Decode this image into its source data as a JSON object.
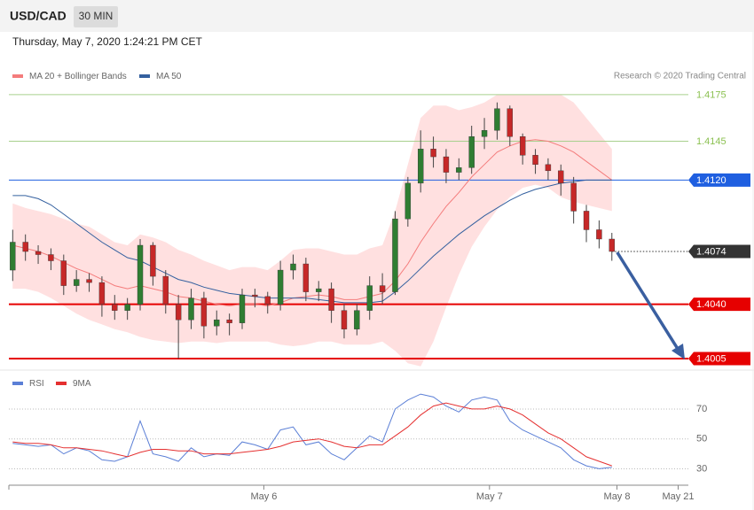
{
  "chart_data": [
    {
      "type": "candlestick",
      "title": "USD/CAD",
      "timeframe": "30 MIN",
      "subtitle": "Thursday, May 7, 2020 1:24:21 PM CET",
      "source": "Research © 2020 Trading Central",
      "xlim": [
        -0.3,
        53
      ],
      "ylim": [
        1.39993,
        1.41818
      ],
      "candles": {
        "up_color": "#2f7d32",
        "down_color": "#c62828",
        "open": [
          1.4062,
          1.408,
          1.4074,
          1.4072,
          1.4068,
          1.4052,
          1.4056,
          1.4054,
          1.404,
          1.4036,
          1.404,
          1.4078,
          1.4058,
          1.404,
          1.403,
          1.4044,
          1.4026,
          1.403,
          1.4028,
          1.4046,
          1.4045,
          1.404,
          1.4062,
          1.4066,
          1.4048,
          1.405,
          1.4036,
          1.4024,
          1.4036,
          1.4052,
          1.4048,
          1.4095,
          1.4118,
          1.414,
          1.4135,
          1.4125,
          1.4128,
          1.4148,
          1.4152,
          1.4166,
          1.4148,
          1.4136,
          1.413,
          1.4126,
          1.4118,
          1.41,
          1.4088,
          1.4082
        ],
        "high": [
          1.4088,
          1.4085,
          1.4078,
          1.4076,
          1.4072,
          1.4062,
          1.406,
          1.4058,
          1.4046,
          1.4044,
          1.4082,
          1.408,
          1.4062,
          1.4046,
          1.405,
          1.4048,
          1.4036,
          1.4034,
          1.405,
          1.405,
          1.4048,
          1.4068,
          1.4072,
          1.407,
          1.4055,
          1.4054,
          1.404,
          1.404,
          1.4058,
          1.406,
          1.41,
          1.4122,
          1.4152,
          1.4148,
          1.414,
          1.4134,
          1.4155,
          1.416,
          1.417,
          1.4168,
          1.415,
          1.414,
          1.4134,
          1.413,
          1.4122,
          1.4104,
          1.4094,
          1.4086
        ],
        "low": [
          1.4055,
          1.4068,
          1.4066,
          1.4062,
          1.4046,
          1.4048,
          1.4048,
          1.4032,
          1.403,
          1.403,
          1.4036,
          1.4052,
          1.4034,
          1.4005,
          1.4024,
          1.4018,
          1.402,
          1.402,
          1.4024,
          1.4038,
          1.4034,
          1.4036,
          1.4056,
          1.4042,
          1.4042,
          1.4028,
          1.4018,
          1.402,
          1.403,
          1.404,
          1.4046,
          1.409,
          1.4112,
          1.4128,
          1.4118,
          1.412,
          1.4124,
          1.414,
          1.4146,
          1.4142,
          1.413,
          1.4124,
          1.412,
          1.411,
          1.4092,
          1.408,
          1.4076,
          1.4068
        ],
        "close": [
          1.408,
          1.4074,
          1.4072,
          1.4068,
          1.4052,
          1.4056,
          1.4054,
          1.404,
          1.4036,
          1.404,
          1.4078,
          1.4058,
          1.404,
          1.403,
          1.4044,
          1.4026,
          1.403,
          1.4028,
          1.4046,
          1.4045,
          1.404,
          1.4062,
          1.4066,
          1.4048,
          1.405,
          1.4036,
          1.4024,
          1.4036,
          1.4052,
          1.4048,
          1.4095,
          1.4118,
          1.414,
          1.4135,
          1.4125,
          1.4128,
          1.4148,
          1.4152,
          1.4166,
          1.4148,
          1.4136,
          1.413,
          1.4126,
          1.4118,
          1.41,
          1.4088,
          1.4082,
          1.4074
        ]
      },
      "series": [
        {
          "name": "MA 20 + Bollinger Bands",
          "color": "#f47c7c",
          "band_color": "#ffdada",
          "values": [
            1.4078,
            1.4076,
            1.4074,
            1.4071,
            1.4067,
            1.4063,
            1.406,
            1.4056,
            1.4052,
            1.405,
            1.4052,
            1.405,
            1.4048,
            1.4045,
            1.4044,
            1.4042,
            1.404,
            1.4039,
            1.404,
            1.404,
            1.4039,
            1.4041,
            1.4044,
            1.4045,
            1.4046,
            1.4045,
            1.4043,
            1.4043,
            1.4045,
            1.4047,
            1.4055,
            1.4066,
            1.408,
            1.4092,
            1.4103,
            1.4112,
            1.4122,
            1.413,
            1.4138,
            1.4142,
            1.4145,
            1.4146,
            1.4145,
            1.4142,
            1.4138,
            1.4132,
            1.4126,
            1.412
          ],
          "upper": [
            1.4105,
            1.4102,
            1.41,
            1.4098,
            1.4095,
            1.4092,
            1.409,
            1.4085,
            1.408,
            1.4078,
            1.4085,
            1.4083,
            1.408,
            1.4075,
            1.4072,
            1.4068,
            1.4065,
            1.4062,
            1.4064,
            1.4064,
            1.4062,
            1.4068,
            1.4075,
            1.4076,
            1.4076,
            1.4074,
            1.4072,
            1.4072,
            1.4076,
            1.4078,
            1.41,
            1.413,
            1.416,
            1.4168,
            1.4168,
            1.4165,
            1.4167,
            1.417,
            1.4175,
            1.4175,
            1.4175,
            1.4175,
            1.4175,
            1.4175,
            1.417,
            1.416,
            1.415,
            1.414
          ],
          "lower": [
            1.405,
            1.405,
            1.4048,
            1.4044,
            1.4039,
            1.4034,
            1.403,
            1.4027,
            1.4024,
            1.4022,
            1.4019,
            1.4017,
            1.4016,
            1.4015,
            1.4016,
            1.4016,
            1.4015,
            1.4016,
            1.4016,
            1.4016,
            1.4016,
            1.4014,
            1.4013,
            1.4014,
            1.4016,
            1.4016,
            1.4014,
            1.4014,
            1.4014,
            1.4016,
            1.401,
            1.4002,
            1.4,
            1.4016,
            1.4038,
            1.4059,
            1.4077,
            1.409,
            1.4101,
            1.4109,
            1.4115,
            1.4117,
            1.4115,
            1.4109,
            1.4106,
            1.4104,
            1.4102,
            1.41
          ]
        },
        {
          "name": "MA 50",
          "color": "#34609f",
          "values": [
            1.411,
            1.411,
            1.4108,
            1.4104,
            1.4098,
            1.4092,
            1.4086,
            1.408,
            1.4075,
            1.407,
            1.4068,
            1.4064,
            1.406,
            1.4056,
            1.4054,
            1.4051,
            1.4049,
            1.4047,
            1.4046,
            1.4045,
            1.4044,
            1.4044,
            1.4044,
            1.4044,
            1.4043,
            1.4042,
            1.4041,
            1.4041,
            1.4041,
            1.4042,
            1.4048,
            1.4055,
            1.4063,
            1.4071,
            1.4078,
            1.4085,
            1.4091,
            1.4097,
            1.4102,
            1.4107,
            1.4111,
            1.4114,
            1.4116,
            1.4118,
            1.4119,
            1.412,
            1.412,
            1.412
          ]
        }
      ],
      "levels": [
        {
          "value": 1.4175,
          "label": "1.4175",
          "color": "#8cc152",
          "tag": false,
          "line": "solid"
        },
        {
          "value": 1.4145,
          "label": "1.4145",
          "color": "#8cc152",
          "tag": false,
          "line": "solid"
        },
        {
          "value": 1.412,
          "label": "1.4120",
          "color": "#1f5fe0",
          "tag": true,
          "line": "solid"
        },
        {
          "value": 1.4074,
          "label": "1.4074",
          "color": "#333333",
          "tag": true,
          "line": "dotted"
        },
        {
          "value": 1.404,
          "label": "1.4040",
          "color": "#e60000",
          "tag": true,
          "line": "thick"
        },
        {
          "value": 1.4005,
          "label": "1.4005",
          "color": "#e60000",
          "tag": true,
          "line": "thick"
        }
      ]
    },
    {
      "type": "line",
      "xlim": [
        -0.3,
        53
      ],
      "xticks": [
        {
          "value": 19.7,
          "label": "May 6"
        },
        {
          "value": 37.4,
          "label": "May 7"
        },
        {
          "value": 47.4,
          "label": "May 8"
        },
        {
          "value": 52.2,
          "label": "May 21"
        }
      ],
      "ylim": [
        19,
        83
      ],
      "yticks": [
        70,
        50,
        30
      ],
      "grid": true,
      "series": [
        {
          "name": "RSI",
          "color": "#5b7fd6",
          "values": [
            47,
            46,
            45,
            46,
            40,
            44,
            42,
            36,
            35,
            38,
            62,
            40,
            38,
            35,
            44,
            38,
            40,
            39,
            48,
            46,
            43,
            56,
            58,
            46,
            48,
            40,
            36,
            44,
            52,
            48,
            70,
            76,
            80,
            78,
            72,
            68,
            76,
            78,
            76,
            62,
            56,
            52,
            48,
            44,
            36,
            32,
            30,
            31
          ]
        },
        {
          "name": "9MA",
          "color": "#e53030",
          "values": [
            48,
            47,
            47,
            46,
            44,
            44,
            43,
            42,
            40,
            38,
            41,
            43,
            43,
            42,
            42,
            40,
            40,
            40,
            41,
            42,
            43,
            45,
            48,
            49,
            50,
            48,
            45,
            44,
            46,
            46,
            52,
            58,
            66,
            72,
            74,
            72,
            70,
            70,
            72,
            70,
            66,
            60,
            54,
            50,
            44,
            38,
            35,
            32
          ]
        }
      ]
    }
  ]
}
